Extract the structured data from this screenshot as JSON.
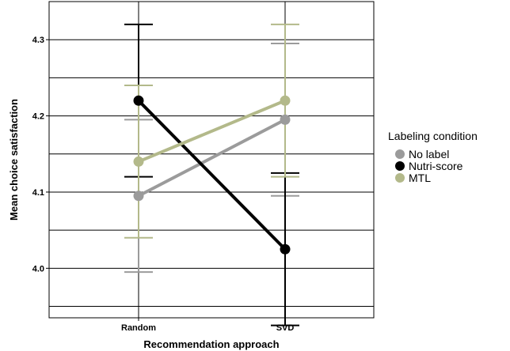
{
  "chart_data": {
    "type": "line",
    "categories": [
      "Random",
      "SVD"
    ],
    "xlabel": "Recommendation approach",
    "ylabel": "Mean choice satisfaction",
    "ylim": [
      3.935,
      4.35
    ],
    "yticks": [
      "4.0",
      "4.1",
      "4.2",
      "4.3"
    ],
    "grid": true,
    "legend_title": "Labeling condition",
    "legend_position": "right",
    "series": [
      {
        "name": "No label",
        "color": "#9b9b9b",
        "values": [
          4.095,
          4.195
        ],
        "err_low": [
          3.995,
          4.095
        ],
        "err_high": [
          4.195,
          4.295
        ]
      },
      {
        "name": "Nutri-score",
        "color": "#000000",
        "values": [
          4.22,
          4.025
        ],
        "err_low": [
          4.12,
          3.925
        ],
        "err_high": [
          4.32,
          4.125
        ]
      },
      {
        "name": "MTL",
        "color": "#b3b98a",
        "values": [
          4.14,
          4.22
        ],
        "err_low": [
          4.04,
          4.12
        ],
        "err_high": [
          4.24,
          4.32
        ]
      }
    ]
  }
}
